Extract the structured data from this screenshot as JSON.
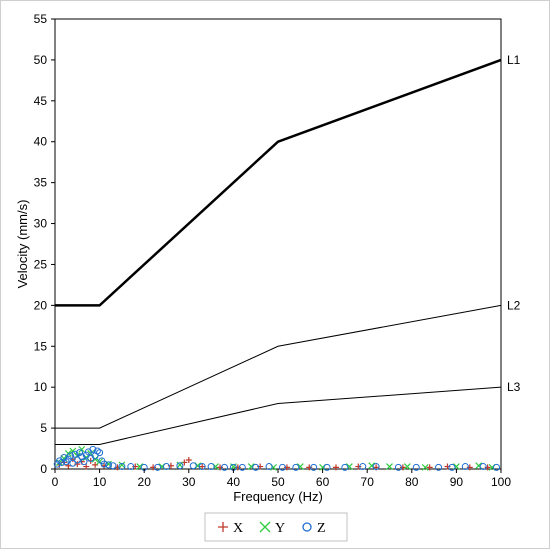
{
  "chart_data": {
    "type": "line",
    "xlabel": "Frequency (Hz)",
    "ylabel": "Velocity (mm/s)",
    "xlim": [
      0,
      100
    ],
    "ylim": [
      0,
      55
    ],
    "x_ticks": [
      0,
      10,
      20,
      30,
      40,
      50,
      60,
      70,
      80,
      90,
      100
    ],
    "y_ticks": [
      0,
      5,
      10,
      15,
      20,
      25,
      30,
      35,
      40,
      45,
      50,
      55
    ],
    "grid": false,
    "limit_lines": [
      {
        "name": "L1",
        "color": "#000000",
        "width": "thick",
        "x": [
          0,
          10,
          50,
          100
        ],
        "y": [
          20,
          20,
          40,
          50
        ]
      },
      {
        "name": "L2",
        "color": "#000000",
        "width": "thin",
        "x": [
          0,
          10,
          50,
          100
        ],
        "y": [
          5,
          5,
          15,
          20
        ]
      },
      {
        "name": "L3",
        "color": "#000000",
        "width": "thin",
        "x": [
          0,
          10,
          50,
          100
        ],
        "y": [
          3,
          3,
          8,
          10
        ]
      }
    ],
    "scatter_series": [
      {
        "name": "X",
        "marker": "plus",
        "color": "#c0392b",
        "points": [
          [
            1,
            0.5
          ],
          [
            2,
            0.8
          ],
          [
            3,
            0.4
          ],
          [
            4,
            1.2
          ],
          [
            5,
            0.6
          ],
          [
            6,
            0.9
          ],
          [
            7,
            0.3
          ],
          [
            8,
            1.0
          ],
          [
            9,
            0.5
          ],
          [
            11,
            0.4
          ],
          [
            14,
            0.2
          ],
          [
            18,
            0.3
          ],
          [
            22,
            0.2
          ],
          [
            26,
            0.4
          ],
          [
            29,
            0.8
          ],
          [
            30,
            1.1
          ],
          [
            33,
            0.3
          ],
          [
            37,
            0.2
          ],
          [
            41,
            0.2
          ],
          [
            46,
            0.3
          ],
          [
            52,
            0.2
          ],
          [
            57,
            0.2
          ],
          [
            63,
            0.2
          ],
          [
            68,
            0.3
          ],
          [
            72,
            0.2
          ],
          [
            78,
            0.2
          ],
          [
            84,
            0.2
          ],
          [
            88,
            0.3
          ],
          [
            93,
            0.2
          ],
          [
            97,
            0.2
          ]
        ]
      },
      {
        "name": "Y",
        "marker": "cross",
        "color": "#2ecc40",
        "points": [
          [
            1,
            0.8
          ],
          [
            2,
            1.3
          ],
          [
            3,
            1.9
          ],
          [
            4,
            2.2
          ],
          [
            5,
            1.6
          ],
          [
            6,
            2.4
          ],
          [
            7,
            1.4
          ],
          [
            8,
            1.9
          ],
          [
            9,
            1.2
          ],
          [
            10,
            0.9
          ],
          [
            12,
            0.6
          ],
          [
            15,
            0.5
          ],
          [
            19,
            0.3
          ],
          [
            24,
            0.3
          ],
          [
            28,
            0.5
          ],
          [
            32,
            0.4
          ],
          [
            36,
            0.3
          ],
          [
            40,
            0.3
          ],
          [
            44,
            0.3
          ],
          [
            49,
            0.2
          ],
          [
            55,
            0.3
          ],
          [
            60,
            0.2
          ],
          [
            66,
            0.3
          ],
          [
            71,
            0.4
          ],
          [
            75,
            0.3
          ],
          [
            79,
            0.3
          ],
          [
            83,
            0.2
          ],
          [
            90,
            0.3
          ],
          [
            95,
            0.4
          ],
          [
            98,
            0.2
          ]
        ]
      },
      {
        "name": "Z",
        "marker": "circle",
        "color": "#1f6fd1",
        "points": [
          [
            0.5,
            0.6
          ],
          [
            1,
            1.0
          ],
          [
            1.5,
            0.8
          ],
          [
            2,
            1.4
          ],
          [
            2.5,
            0.9
          ],
          [
            3,
            1.2
          ],
          [
            3.5,
            1.6
          ],
          [
            4,
            0.7
          ],
          [
            4.5,
            1.8
          ],
          [
            5,
            1.1
          ],
          [
            5.5,
            2.0
          ],
          [
            6,
            1.5
          ],
          [
            6.5,
            0.9
          ],
          [
            7,
            1.7
          ],
          [
            7.5,
            2.1
          ],
          [
            8,
            1.3
          ],
          [
            8.5,
            2.4
          ],
          [
            9,
            1.6
          ],
          [
            9.5,
            2.2
          ],
          [
            10,
            2.0
          ],
          [
            10.5,
            1.0
          ],
          [
            11,
            0.6
          ],
          [
            12,
            0.5
          ],
          [
            13,
            0.4
          ],
          [
            15,
            0.3
          ],
          [
            17,
            0.3
          ],
          [
            20,
            0.2
          ],
          [
            23,
            0.2
          ],
          [
            25,
            0.3
          ],
          [
            28,
            0.4
          ],
          [
            31,
            0.4
          ],
          [
            33,
            0.3
          ],
          [
            35,
            0.3
          ],
          [
            38,
            0.2
          ],
          [
            40,
            0.2
          ],
          [
            42,
            0.2
          ],
          [
            45,
            0.2
          ],
          [
            48,
            0.3
          ],
          [
            51,
            0.2
          ],
          [
            54,
            0.2
          ],
          [
            58,
            0.2
          ],
          [
            61,
            0.2
          ],
          [
            65,
            0.2
          ],
          [
            69,
            0.3
          ],
          [
            72,
            0.3
          ],
          [
            77,
            0.2
          ],
          [
            81,
            0.2
          ],
          [
            86,
            0.2
          ],
          [
            89,
            0.2
          ],
          [
            92,
            0.3
          ],
          [
            96,
            0.3
          ],
          [
            99,
            0.2
          ]
        ]
      }
    ]
  }
}
